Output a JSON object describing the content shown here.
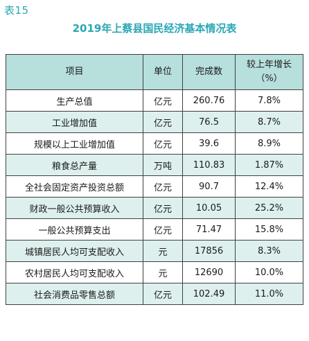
{
  "table_number": "表15",
  "title": "2019年上蔡县国民经济基本情况表",
  "header": {
    "item": "项目",
    "unit": "单位",
    "completed": "完成数",
    "growth_line1": "较上年增长",
    "growth_line2": "（%）"
  },
  "rows": [
    {
      "item": "生产总值",
      "unit": "亿元",
      "value": "260.76",
      "growth": "7.8%"
    },
    {
      "item": "工业增加值",
      "unit": "亿元",
      "value": "76.5",
      "growth": "8.7%"
    },
    {
      "item": "规模以上工业增加值",
      "unit": "亿元",
      "value": "39.6",
      "growth": "8.9%"
    },
    {
      "item": "粮食总产量",
      "unit": "万吨",
      "value": "110.83",
      "growth": "1.87%"
    },
    {
      "item": "全社会固定资产投资总额",
      "unit": "亿元",
      "value": "90.7",
      "growth": "12.4%"
    },
    {
      "item": "财政一般公共预算收入",
      "unit": "亿元",
      "value": "10.05",
      "growth": "25.2%"
    },
    {
      "item": "一般公共预算支出",
      "unit": "亿元",
      "value": "71.47",
      "growth": "15.8%"
    },
    {
      "item": "城镇居民人均可支配收入",
      "unit": "元",
      "value": "17856",
      "growth": "8.3%"
    },
    {
      "item": "农村居民人均可支配收入",
      "unit": "元",
      "value": "12690",
      "growth": "10.0%"
    },
    {
      "item": "社会消费品零售总额",
      "unit": "亿元",
      "value": "102.49",
      "growth": "11.0%"
    }
  ]
}
